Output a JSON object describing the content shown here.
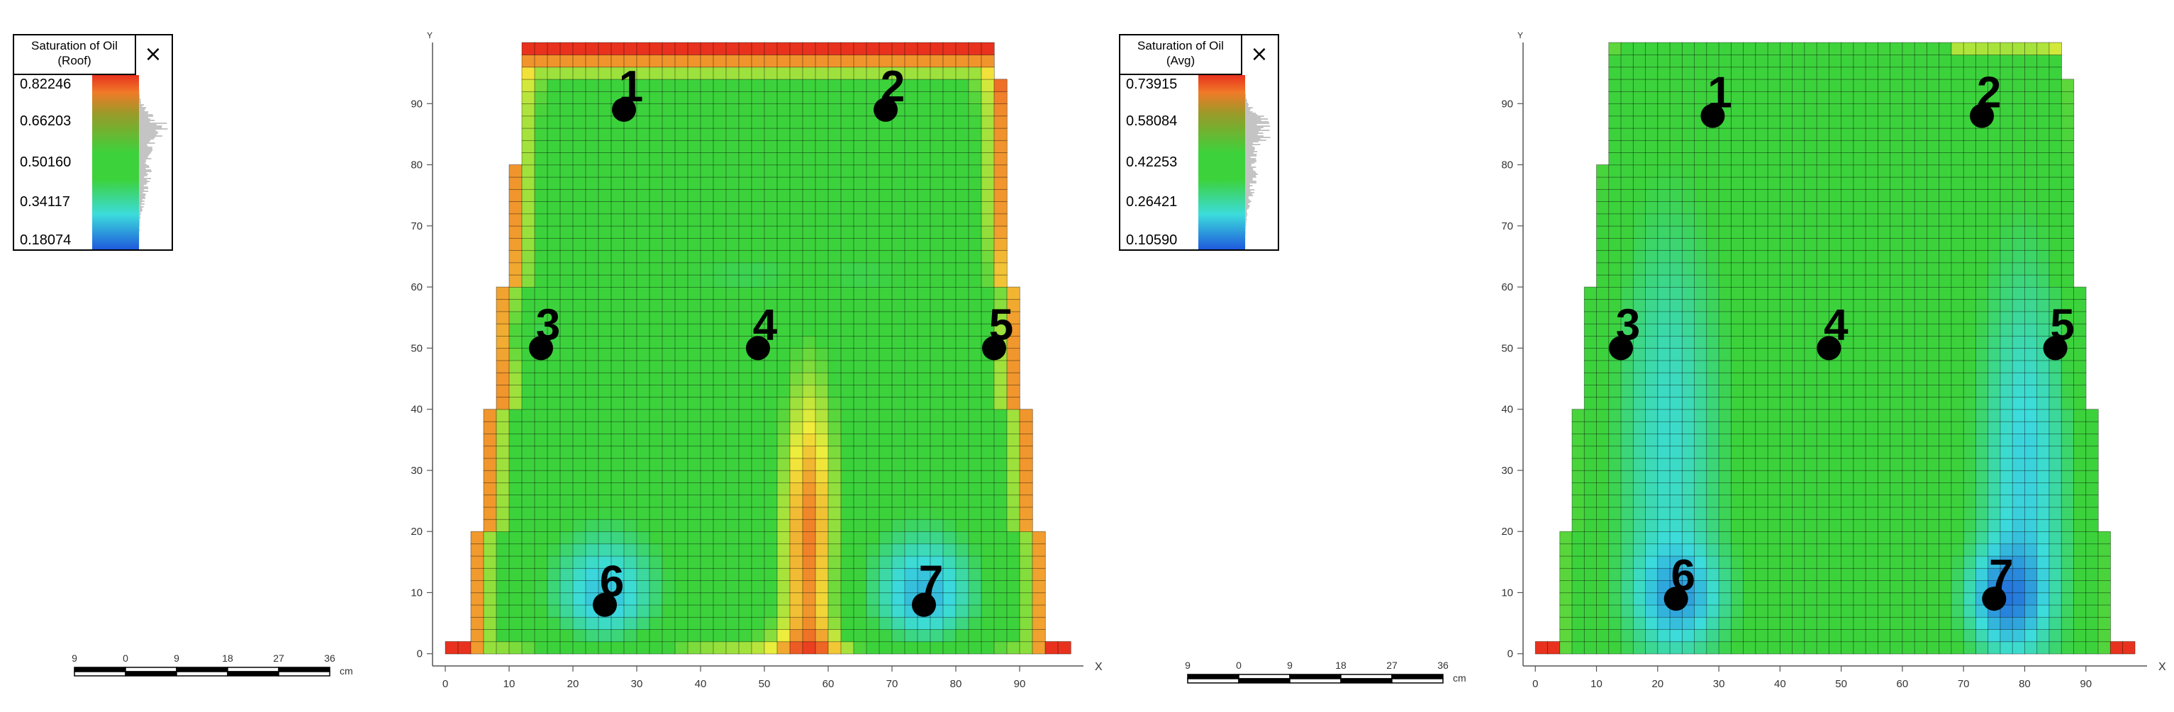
{
  "chart_data": [
    {
      "type": "heatmap",
      "title": "",
      "xlabel": "X",
      "ylabel": "Y",
      "xlim": [
        -2,
        100
      ],
      "ylim": [
        -2,
        100
      ],
      "x_ticks": [
        "0",
        "10",
        "20",
        "30",
        "40",
        "50",
        "60",
        "70",
        "80",
        "90"
      ],
      "y_ticks": [
        "0",
        "10",
        "20",
        "30",
        "40",
        "50",
        "60",
        "70",
        "80",
        "90"
      ],
      "grid": true,
      "legend": {
        "title_line1": "Saturation of Oil",
        "title_line2": "(Roof)",
        "close_glyph": "×",
        "ticks": [
          "0.82246",
          "0.66203",
          "0.50160",
          "0.34117",
          "0.18074"
        ],
        "min": 0.18074,
        "max": 0.82246,
        "placement": "top-left"
      },
      "scale_bar": {
        "ticks": [
          "9",
          "0",
          "9",
          "18",
          "27",
          "36"
        ],
        "unit": "cm"
      },
      "wells": [
        {
          "label": "1",
          "x": 28,
          "y": 89
        },
        {
          "label": "2",
          "x": 69,
          "y": 89
        },
        {
          "label": "3",
          "x": 15,
          "y": 50
        },
        {
          "label": "4",
          "x": 49,
          "y": 50
        },
        {
          "label": "5",
          "x": 86,
          "y": 50
        },
        {
          "label": "6",
          "x": 25,
          "y": 8
        },
        {
          "label": "7",
          "x": 75,
          "y": 8
        }
      ]
    },
    {
      "type": "heatmap",
      "title": "",
      "xlabel": "X",
      "ylabel": "Y",
      "xlim": [
        -2,
        100
      ],
      "ylim": [
        -2,
        100
      ],
      "x_ticks": [
        "0",
        "10",
        "20",
        "30",
        "40",
        "50",
        "60",
        "70",
        "80",
        "90"
      ],
      "y_ticks": [
        "0",
        "10",
        "20",
        "30",
        "40",
        "50",
        "60",
        "70",
        "80",
        "90"
      ],
      "grid": true,
      "legend": {
        "title_line1": "Saturation of Oil",
        "title_line2": "(Avg)",
        "close_glyph": "×",
        "ticks": [
          "0.73915",
          "0.58084",
          "0.42253",
          "0.26421",
          "0.10590"
        ],
        "min": 0.1059,
        "max": 0.73915,
        "placement": "top-left"
      },
      "scale_bar": {
        "ticks": [
          "9",
          "0",
          "9",
          "18",
          "27",
          "36"
        ],
        "unit": "cm"
      },
      "wells": [
        {
          "label": "1",
          "x": 29,
          "y": 88
        },
        {
          "label": "2",
          "x": 73,
          "y": 88
        },
        {
          "label": "3",
          "x": 14,
          "y": 50
        },
        {
          "label": "4",
          "x": 48,
          "y": 50
        },
        {
          "label": "5",
          "x": 85,
          "y": 50
        },
        {
          "label": "6",
          "x": 23,
          "y": 9
        },
        {
          "label": "7",
          "x": 75,
          "y": 9
        }
      ]
    }
  ],
  "colors": {
    "red": "#e8321e",
    "orange": "#f07a28",
    "yellow": "#f2ee3c",
    "green": "#3cd23c",
    "cyan": "#3cdcdc",
    "blue": "#1e5adc"
  }
}
